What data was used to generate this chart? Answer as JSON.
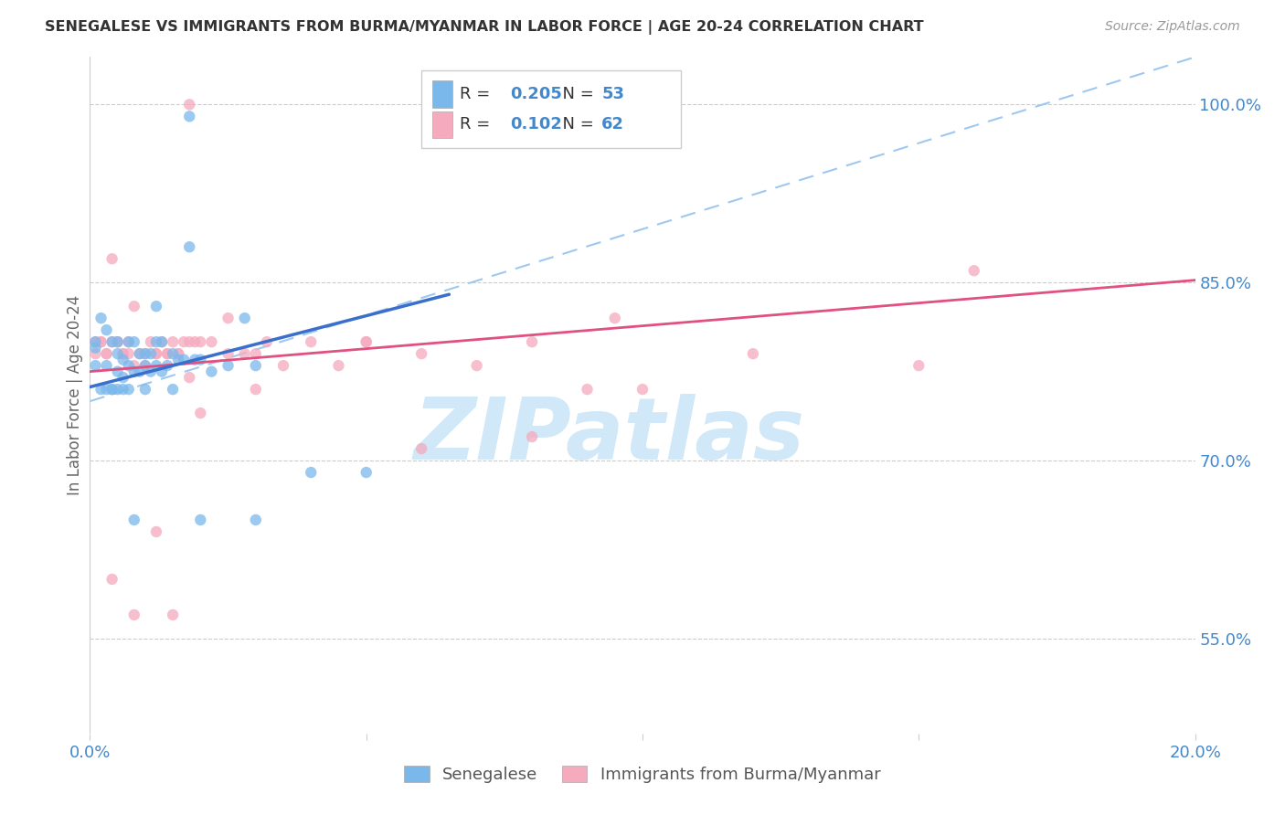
{
  "title": "SENEGALESE VS IMMIGRANTS FROM BURMA/MYANMAR IN LABOR FORCE | AGE 20-24 CORRELATION CHART",
  "source": "Source: ZipAtlas.com",
  "ylabel": "In Labor Force | Age 20-24",
  "xlim": [
    0.0,
    0.2
  ],
  "ylim": [
    0.47,
    1.04
  ],
  "ytick_positions": [
    0.55,
    0.7,
    0.85,
    1.0
  ],
  "ytick_labels": [
    "55.0%",
    "70.0%",
    "85.0%",
    "100.0%"
  ],
  "xtick_positions": [
    0.0,
    0.05,
    0.1,
    0.15,
    0.2
  ],
  "xtick_labels": [
    "0.0%",
    "",
    "",
    "",
    "20.0%"
  ],
  "legend_blue_label": "Senegalese",
  "legend_pink_label": "Immigrants from Burma/Myanmar",
  "R_blue": 0.205,
  "N_blue": 53,
  "R_pink": 0.102,
  "N_pink": 62,
  "blue_scatter_color": "#7ab8ec",
  "pink_scatter_color": "#f5aabe",
  "blue_line_color": "#3b6fcc",
  "pink_line_color": "#e05080",
  "dashed_line_color": "#9fc8f0",
  "watermark_text": "ZIPatlas",
  "watermark_color": "#d0e8f8",
  "blue_line_x0": 0.0,
  "blue_line_x1": 0.065,
  "blue_line_y0": 0.762,
  "blue_line_y1": 0.84,
  "pink_line_x0": 0.0,
  "pink_line_x1": 0.2,
  "pink_line_y0": 0.775,
  "pink_line_y1": 0.852,
  "dashed_line_x0": 0.0,
  "dashed_line_x1": 0.2,
  "dashed_line_y0": 0.75,
  "dashed_line_y1": 1.04,
  "blue_scatter_x": [
    0.002,
    0.003,
    0.003,
    0.004,
    0.004,
    0.005,
    0.005,
    0.005,
    0.006,
    0.006,
    0.007,
    0.007,
    0.008,
    0.008,
    0.009,
    0.009,
    0.01,
    0.01,
    0.011,
    0.011,
    0.012,
    0.012,
    0.013,
    0.013,
    0.014,
    0.015,
    0.016,
    0.017,
    0.018,
    0.019,
    0.02,
    0.022,
    0.025,
    0.028,
    0.03,
    0.001,
    0.001,
    0.001,
    0.002,
    0.003,
    0.004,
    0.005,
    0.006,
    0.007,
    0.01,
    0.015,
    0.02,
    0.03,
    0.04,
    0.05,
    0.018,
    0.012,
    0.008
  ],
  "blue_scatter_y": [
    0.82,
    0.81,
    0.78,
    0.8,
    0.76,
    0.8,
    0.79,
    0.775,
    0.785,
    0.77,
    0.8,
    0.78,
    0.8,
    0.775,
    0.79,
    0.775,
    0.79,
    0.78,
    0.79,
    0.775,
    0.8,
    0.78,
    0.8,
    0.775,
    0.78,
    0.79,
    0.785,
    0.785,
    0.88,
    0.785,
    0.785,
    0.775,
    0.78,
    0.82,
    0.78,
    0.8,
    0.795,
    0.78,
    0.76,
    0.76,
    0.76,
    0.76,
    0.76,
    0.76,
    0.76,
    0.76,
    0.65,
    0.65,
    0.69,
    0.69,
    0.99,
    0.83,
    0.65
  ],
  "pink_scatter_x": [
    0.002,
    0.003,
    0.004,
    0.005,
    0.006,
    0.007,
    0.008,
    0.009,
    0.01,
    0.011,
    0.012,
    0.013,
    0.014,
    0.015,
    0.016,
    0.017,
    0.018,
    0.019,
    0.02,
    0.022,
    0.025,
    0.028,
    0.03,
    0.032,
    0.035,
    0.04,
    0.045,
    0.05,
    0.06,
    0.07,
    0.08,
    0.09,
    0.1,
    0.12,
    0.15,
    0.16,
    0.001,
    0.001,
    0.002,
    0.003,
    0.004,
    0.005,
    0.006,
    0.007,
    0.008,
    0.01,
    0.012,
    0.014,
    0.016,
    0.018,
    0.06,
    0.08,
    0.018,
    0.025,
    0.03,
    0.05,
    0.095,
    0.012,
    0.004,
    0.02,
    0.008,
    0.015
  ],
  "pink_scatter_y": [
    0.8,
    0.79,
    0.87,
    0.8,
    0.79,
    0.8,
    0.83,
    0.79,
    0.79,
    0.8,
    0.79,
    0.8,
    0.79,
    0.8,
    0.79,
    0.8,
    0.8,
    0.8,
    0.8,
    0.8,
    0.79,
    0.79,
    0.79,
    0.8,
    0.78,
    0.8,
    0.78,
    0.8,
    0.79,
    0.78,
    0.8,
    0.76,
    0.76,
    0.79,
    0.78,
    0.86,
    0.79,
    0.8,
    0.8,
    0.79,
    0.8,
    0.8,
    0.79,
    0.79,
    0.78,
    0.78,
    0.79,
    0.79,
    0.79,
    0.77,
    0.71,
    0.72,
    1.0,
    0.82,
    0.76,
    0.8,
    0.82,
    0.64,
    0.6,
    0.74,
    0.57,
    0.57
  ]
}
